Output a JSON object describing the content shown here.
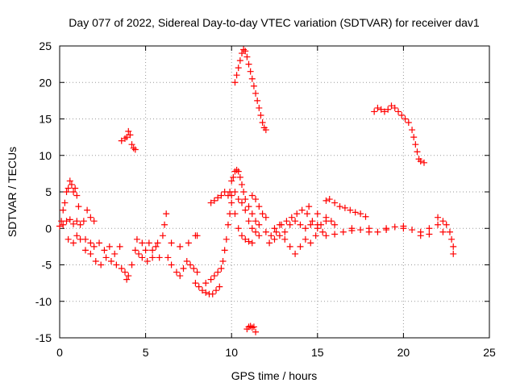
{
  "chart_data": {
    "type": "scatter",
    "title": "Day 077 of 2022, Sidereal Day-to-day VTEC variation (SDTVAR) for receiver dav1",
    "xlabel": "GPS time / hours",
    "ylabel": "SDTVAR / TECUs",
    "xlim": [
      0,
      25
    ],
    "ylim": [
      -15,
      25
    ],
    "xticks": [
      0,
      5,
      10,
      15,
      20,
      25
    ],
    "yticks": [
      -15,
      -10,
      -5,
      0,
      5,
      10,
      15,
      20,
      25
    ],
    "xtick_labels": [
      "0",
      "5",
      "10",
      "15",
      "20",
      "25"
    ],
    "ytick_labels": [
      "-15",
      "-10",
      "-5",
      "0",
      "5",
      "10",
      "15",
      "20",
      "25"
    ],
    "grid": true,
    "marker": "+",
    "marker_color": "#ff0000",
    "series": [
      {
        "name": "SDTVAR",
        "points": [
          [
            0.0,
            0.3
          ],
          [
            0.1,
            1.0
          ],
          [
            0.2,
            2.5
          ],
          [
            0.3,
            3.5
          ],
          [
            0.4,
            5.0
          ],
          [
            0.5,
            5.5
          ],
          [
            0.6,
            6.5
          ],
          [
            0.7,
            6.0
          ],
          [
            0.8,
            5.0
          ],
          [
            0.9,
            5.5
          ],
          [
            1.0,
            4.5
          ],
          [
            1.1,
            3.0
          ],
          [
            0.2,
            0.5
          ],
          [
            0.4,
            1.0
          ],
          [
            0.6,
            1.2
          ],
          [
            0.8,
            0.6
          ],
          [
            1.0,
            1.0
          ],
          [
            1.2,
            0.5
          ],
          [
            1.4,
            1.0
          ],
          [
            1.6,
            2.5
          ],
          [
            1.8,
            1.5
          ],
          [
            2.0,
            1.0
          ],
          [
            0.5,
            -1.5
          ],
          [
            0.8,
            -2.0
          ],
          [
            1.0,
            -1.0
          ],
          [
            1.2,
            -1.5
          ],
          [
            1.5,
            -1.5
          ],
          [
            1.8,
            -2.0
          ],
          [
            2.0,
            -2.5
          ],
          [
            2.3,
            -2.0
          ],
          [
            2.6,
            -3.0
          ],
          [
            2.9,
            -2.5
          ],
          [
            3.2,
            -3.5
          ],
          [
            3.5,
            -2.5
          ],
          [
            1.5,
            -3.0
          ],
          [
            1.8,
            -3.5
          ],
          [
            2.1,
            -4.5
          ],
          [
            2.4,
            -5.0
          ],
          [
            2.7,
            -4.0
          ],
          [
            3.0,
            -4.5
          ],
          [
            3.3,
            -5.0
          ],
          [
            3.6,
            -5.5
          ],
          [
            3.8,
            -6.0
          ],
          [
            3.9,
            -7.0
          ],
          [
            4.0,
            -6.5
          ],
          [
            4.2,
            -5.0
          ],
          [
            3.6,
            12.0
          ],
          [
            3.8,
            12.3
          ],
          [
            3.9,
            12.5
          ],
          [
            4.0,
            13.3
          ],
          [
            4.1,
            12.8
          ],
          [
            4.2,
            11.5
          ],
          [
            4.3,
            11.0
          ],
          [
            4.4,
            10.8
          ],
          [
            4.4,
            -3.0
          ],
          [
            4.6,
            -3.5
          ],
          [
            4.8,
            -4.0
          ],
          [
            5.0,
            -3.0
          ],
          [
            5.2,
            -2.0
          ],
          [
            5.4,
            -3.0
          ],
          [
            5.6,
            -2.5
          ],
          [
            5.8,
            -4.0
          ],
          [
            6.0,
            -1.0
          ],
          [
            6.1,
            0.5
          ],
          [
            6.2,
            2.0
          ],
          [
            4.5,
            -1.5
          ],
          [
            4.8,
            -2.0
          ],
          [
            5.1,
            -4.5
          ],
          [
            5.4,
            -4.0
          ],
          [
            5.7,
            -2.0
          ],
          [
            6.3,
            -4.0
          ],
          [
            6.5,
            -5.0
          ],
          [
            6.8,
            -6.0
          ],
          [
            7.0,
            -6.5
          ],
          [
            7.2,
            -5.5
          ],
          [
            7.4,
            -4.5
          ],
          [
            7.6,
            -5.0
          ],
          [
            7.8,
            -5.5
          ],
          [
            8.0,
            -6.0
          ],
          [
            6.5,
            -2.0
          ],
          [
            7.0,
            -2.5
          ],
          [
            7.5,
            -2.0
          ],
          [
            7.9,
            -1.0
          ],
          [
            8.0,
            -1.0
          ],
          [
            7.9,
            -7.5
          ],
          [
            8.1,
            -8.0
          ],
          [
            8.3,
            -8.5
          ],
          [
            8.5,
            -8.8
          ],
          [
            8.7,
            -9.0
          ],
          [
            8.9,
            -9.0
          ],
          [
            9.1,
            -8.5
          ],
          [
            9.3,
            -8.0
          ],
          [
            8.5,
            -7.5
          ],
          [
            8.8,
            -7.0
          ],
          [
            9.0,
            -6.5
          ],
          [
            9.2,
            -6.0
          ],
          [
            9.4,
            -5.5
          ],
          [
            9.5,
            -4.5
          ],
          [
            9.6,
            -3.0
          ],
          [
            9.7,
            -1.5
          ],
          [
            9.8,
            0.5
          ],
          [
            9.9,
            2.0
          ],
          [
            8.8,
            3.5
          ],
          [
            9.0,
            3.8
          ],
          [
            9.2,
            4.2
          ],
          [
            9.4,
            4.5
          ],
          [
            9.6,
            5.0
          ],
          [
            9.8,
            4.5
          ],
          [
            10.0,
            3.5
          ],
          [
            10.2,
            2.0
          ],
          [
            10.4,
            0.0
          ],
          [
            10.6,
            -1.0
          ],
          [
            10.8,
            -1.5
          ],
          [
            11.0,
            -1.8
          ],
          [
            11.2,
            -2.0
          ],
          [
            9.9,
            5.0
          ],
          [
            10.0,
            6.5
          ],
          [
            10.1,
            7.0
          ],
          [
            10.2,
            7.8
          ],
          [
            10.3,
            8.0
          ],
          [
            10.4,
            7.8
          ],
          [
            10.5,
            7.0
          ],
          [
            10.6,
            6.0
          ],
          [
            10.7,
            5.0
          ],
          [
            10.8,
            4.0
          ],
          [
            11.0,
            3.0
          ],
          [
            11.2,
            2.0
          ],
          [
            11.4,
            1.0
          ],
          [
            11.6,
            0.5
          ],
          [
            10.0,
            4.5
          ],
          [
            10.2,
            5.0
          ],
          [
            10.4,
            4.0
          ],
          [
            10.6,
            3.5
          ],
          [
            10.8,
            2.5
          ],
          [
            11.0,
            1.0
          ],
          [
            11.2,
            0.0
          ],
          [
            11.4,
            -0.5
          ],
          [
            11.6,
            -1.0
          ],
          [
            11.2,
            4.5
          ],
          [
            11.4,
            4.0
          ],
          [
            11.6,
            3.0
          ],
          [
            11.8,
            2.0
          ],
          [
            12.0,
            1.5
          ],
          [
            10.2,
            20.0
          ],
          [
            10.3,
            21.0
          ],
          [
            10.4,
            22.0
          ],
          [
            10.5,
            23.0
          ],
          [
            10.6,
            24.0
          ],
          [
            10.7,
            24.5
          ],
          [
            10.8,
            24.3
          ],
          [
            10.9,
            23.5
          ],
          [
            11.0,
            22.5
          ],
          [
            11.1,
            21.5
          ],
          [
            11.2,
            20.5
          ],
          [
            11.3,
            19.5
          ],
          [
            11.4,
            18.5
          ],
          [
            11.5,
            17.5
          ],
          [
            11.6,
            16.5
          ],
          [
            11.7,
            15.5
          ],
          [
            11.8,
            14.5
          ],
          [
            11.9,
            13.8
          ],
          [
            12.0,
            13.5
          ],
          [
            10.9,
            -13.8
          ],
          [
            11.0,
            -13.5
          ],
          [
            11.1,
            -13.4
          ],
          [
            11.2,
            -13.6
          ],
          [
            11.3,
            -13.5
          ],
          [
            11.4,
            -14.2
          ],
          [
            12.0,
            -0.5
          ],
          [
            12.3,
            -1.0
          ],
          [
            12.6,
            -0.5
          ],
          [
            12.9,
            0.5
          ],
          [
            13.2,
            1.0
          ],
          [
            13.5,
            1.5
          ],
          [
            13.8,
            2.0
          ],
          [
            14.1,
            2.5
          ],
          [
            14.4,
            2.0
          ],
          [
            14.7,
            1.0
          ],
          [
            15.0,
            0.5
          ],
          [
            12.2,
            -2.0
          ],
          [
            12.5,
            -1.5
          ],
          [
            12.8,
            -1.0
          ],
          [
            13.1,
            -1.5
          ],
          [
            13.4,
            -2.5
          ],
          [
            13.7,
            -3.5
          ],
          [
            14.0,
            -2.5
          ],
          [
            14.3,
            -1.5
          ],
          [
            14.6,
            -2.0
          ],
          [
            14.9,
            -1.0
          ],
          [
            15.2,
            0.5
          ],
          [
            15.5,
            1.0
          ],
          [
            12.5,
            0.0
          ],
          [
            12.8,
            0.5
          ],
          [
            13.1,
            -0.5
          ],
          [
            13.4,
            0.5
          ],
          [
            13.7,
            1.0
          ],
          [
            14.0,
            0.5
          ],
          [
            14.3,
            0.0
          ],
          [
            14.6,
            0.5
          ],
          [
            15.0,
            0.0
          ],
          [
            15.3,
            -0.5
          ],
          [
            14.5,
            3.0
          ],
          [
            15.0,
            2.0
          ],
          [
            15.5,
            1.5
          ],
          [
            15.8,
            1.0
          ],
          [
            15.5,
            3.8
          ],
          [
            15.7,
            4.0
          ],
          [
            16.0,
            3.5
          ],
          [
            16.3,
            3.0
          ],
          [
            16.6,
            2.8
          ],
          [
            16.9,
            2.5
          ],
          [
            17.2,
            2.2
          ],
          [
            17.5,
            2.0
          ],
          [
            17.8,
            1.6
          ],
          [
            15.5,
            -1.0
          ],
          [
            16.0,
            -0.8
          ],
          [
            16.5,
            -0.5
          ],
          [
            17.0,
            -0.3
          ],
          [
            17.5,
            -0.2
          ],
          [
            18.0,
            0.0
          ],
          [
            18.5,
            -0.5
          ],
          [
            19.0,
            0.0
          ],
          [
            19.5,
            0.2
          ],
          [
            20.0,
            0.0
          ],
          [
            20.5,
            -0.2
          ],
          [
            21.0,
            -0.5
          ],
          [
            21.5,
            0.0
          ],
          [
            22.0,
            0.5
          ],
          [
            22.3,
            -0.5
          ],
          [
            16.0,
            0.5
          ],
          [
            17.0,
            0.0
          ],
          [
            18.0,
            -0.5
          ],
          [
            19.0,
            -0.2
          ],
          [
            20.0,
            0.3
          ],
          [
            21.0,
            -1.0
          ],
          [
            21.5,
            -0.8
          ],
          [
            22.0,
            1.5
          ],
          [
            22.3,
            1.0
          ],
          [
            22.5,
            0.5
          ],
          [
            22.7,
            -0.5
          ],
          [
            22.8,
            -1.5
          ],
          [
            22.9,
            -2.5
          ],
          [
            22.9,
            -3.5
          ],
          [
            18.3,
            16.0
          ],
          [
            18.5,
            16.5
          ],
          [
            18.7,
            16.3
          ],
          [
            18.9,
            16.0
          ],
          [
            19.1,
            16.3
          ],
          [
            19.3,
            16.8
          ],
          [
            19.5,
            16.5
          ],
          [
            19.7,
            16.0
          ],
          [
            19.9,
            15.5
          ],
          [
            20.1,
            15.0
          ],
          [
            20.3,
            14.5
          ],
          [
            20.5,
            13.5
          ],
          [
            20.6,
            12.5
          ],
          [
            20.7,
            11.5
          ],
          [
            20.8,
            10.5
          ],
          [
            20.9,
            9.5
          ],
          [
            21.0,
            9.2
          ],
          [
            21.2,
            9.0
          ]
        ]
      }
    ]
  }
}
